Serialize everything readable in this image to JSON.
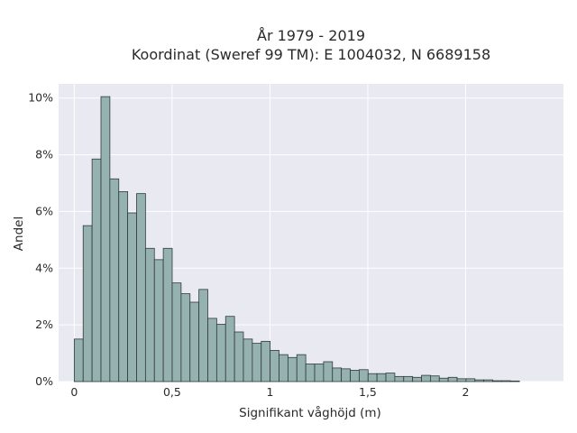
{
  "chart_data": {
    "type": "bar",
    "title_lines": [
      "År 1979 - 2019",
      "Koordinat (Sweref 99 TM): E 1004032, N 6689158"
    ],
    "xlabel": "Signifikant våghöjd (m)",
    "ylabel": "Andel",
    "xlim": [
      -0.08,
      2.5
    ],
    "ylim": [
      0,
      0.105
    ],
    "x_ticks": [
      0,
      0.5,
      1,
      1.5,
      2
    ],
    "x_tick_labels": [
      "0",
      "0,5",
      "1",
      "1,5",
      "2"
    ],
    "y_ticks": [
      0,
      0.02,
      0.04,
      0.06,
      0.08,
      0.1
    ],
    "y_tick_labels": [
      "0%",
      "2%",
      "4%",
      "6%",
      "8%",
      "10%"
    ],
    "bin_width": 0.0455,
    "bin_start": 0.0,
    "values": [
      0.015,
      0.055,
      0.0785,
      0.1005,
      0.0715,
      0.067,
      0.0595,
      0.0663,
      0.047,
      0.043,
      0.047,
      0.0348,
      0.031,
      0.028,
      0.0325,
      0.0223,
      0.0202,
      0.023,
      0.0175,
      0.015,
      0.0135,
      0.0142,
      0.011,
      0.0095,
      0.0085,
      0.0095,
      0.0062,
      0.0062,
      0.007,
      0.0048,
      0.0045,
      0.004,
      0.0042,
      0.0028,
      0.0028,
      0.003,
      0.0018,
      0.0018,
      0.0015,
      0.0022,
      0.002,
      0.0012,
      0.0015,
      0.001,
      0.001,
      0.0006,
      0.0006,
      0.0003,
      0.0003,
      0.0002
    ],
    "grid": true
  },
  "colors": {
    "plot_background": "#e9e9f1",
    "bar_fill": "#95b2b0",
    "bar_edge": "#2f3b3a"
  }
}
